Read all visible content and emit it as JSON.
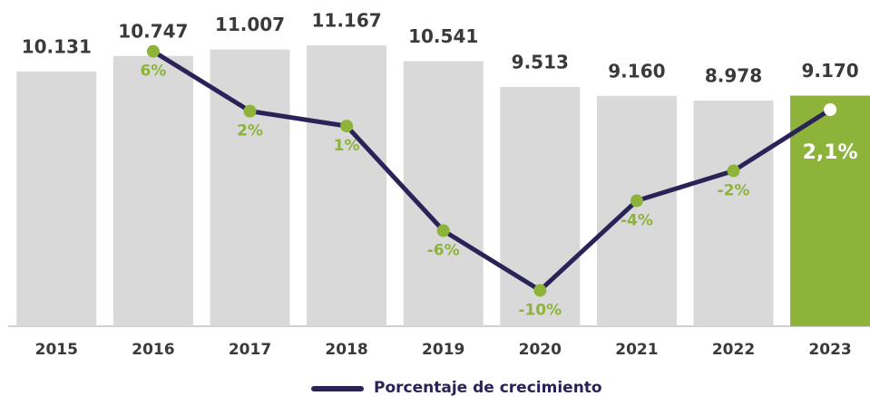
{
  "chart_data": {
    "type": "bar",
    "categories": [
      "2015",
      "2016",
      "2017",
      "2018",
      "2019",
      "2020",
      "2021",
      "2022",
      "2023"
    ],
    "ylim": [
      0,
      12000
    ],
    "y2lim": [
      -12.4,
      7.8
    ],
    "series": [
      {
        "type": "bar",
        "values": [
          10131,
          10747,
          11007,
          11167,
          10541,
          9513,
          9160,
          8978,
          9170
        ],
        "value_labels": [
          "10.131",
          "10.747",
          "11.007",
          "11.167",
          "10.541",
          "9.513",
          "9.160",
          "8.978",
          "9.170"
        ],
        "colors": [
          "#d9d9d9",
          "#d9d9d9",
          "#d9d9d9",
          "#d9d9d9",
          "#d9d9d9",
          "#d9d9d9",
          "#d9d9d9",
          "#d9d9d9",
          "#8db33a"
        ]
      },
      {
        "type": "line",
        "name": "Porcentaje de crecimiento",
        "color": "#2a2358",
        "axis": "y2",
        "marker_colors": [
          null,
          "#8db33a",
          "#8db33a",
          "#8db33a",
          "#8db33a",
          "#8db33a",
          "#8db33a",
          "#8db33a",
          "#ffffff"
        ],
        "values": [
          null,
          6,
          2,
          1,
          -6,
          -10,
          -4,
          -2,
          2.1
        ],
        "value_labels": [
          null,
          "6%",
          "2%",
          "1%",
          "-6%",
          "-10%",
          "-4%",
          "-2%",
          "2,1%"
        ]
      }
    ]
  }
}
